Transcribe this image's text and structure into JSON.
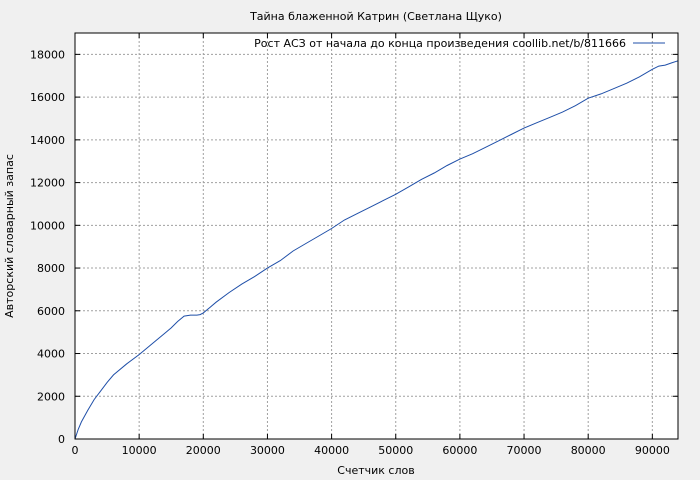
{
  "chart_data": {
    "type": "line",
    "title": "Тайна блаженной Катрин (Светлана Щуко)",
    "xlabel": "Счетчик слов",
    "ylabel": "Авторский словарный запас",
    "xlim": [
      0,
      94000
    ],
    "ylim": [
      0,
      19000
    ],
    "xticks": [
      0,
      10000,
      20000,
      30000,
      40000,
      50000,
      60000,
      70000,
      80000,
      90000
    ],
    "yticks": [
      0,
      2000,
      4000,
      6000,
      8000,
      10000,
      12000,
      14000,
      16000,
      18000
    ],
    "grid": true,
    "legend_position": "top-right",
    "series": [
      {
        "name": "Рост АСЗ от начала до конца произведения coollib.net/b/811666",
        "color": "#1f4fa8",
        "x": [
          0,
          500,
          1000,
          2000,
          3000,
          4000,
          5000,
          6000,
          8000,
          10000,
          12000,
          14000,
          15000,
          16000,
          17000,
          18000,
          19000,
          19500,
          20000,
          21000,
          22000,
          24000,
          26000,
          28000,
          30000,
          32000,
          34000,
          36000,
          38000,
          40000,
          42000,
          44000,
          46000,
          48000,
          50000,
          52000,
          54000,
          56000,
          58000,
          60000,
          62000,
          64000,
          66000,
          68000,
          70000,
          72000,
          74000,
          76000,
          78000,
          80000,
          82000,
          84000,
          86000,
          88000,
          90000,
          91000,
          92000,
          93000,
          94000
        ],
        "y": [
          0,
          450,
          800,
          1350,
          1850,
          2250,
          2650,
          3000,
          3500,
          3950,
          4450,
          4950,
          5200,
          5500,
          5750,
          5800,
          5800,
          5820,
          5900,
          6150,
          6400,
          6850,
          7250,
          7600,
          8000,
          8350,
          8800,
          9150,
          9500,
          9850,
          10250,
          10550,
          10850,
          11150,
          11450,
          11800,
          12150,
          12450,
          12800,
          13100,
          13350,
          13650,
          13950,
          14250,
          14550,
          14800,
          15050,
          15300,
          15600,
          15950,
          16150,
          16400,
          16650,
          16950,
          17300,
          17450,
          17500,
          17600,
          17700
        ]
      }
    ]
  }
}
